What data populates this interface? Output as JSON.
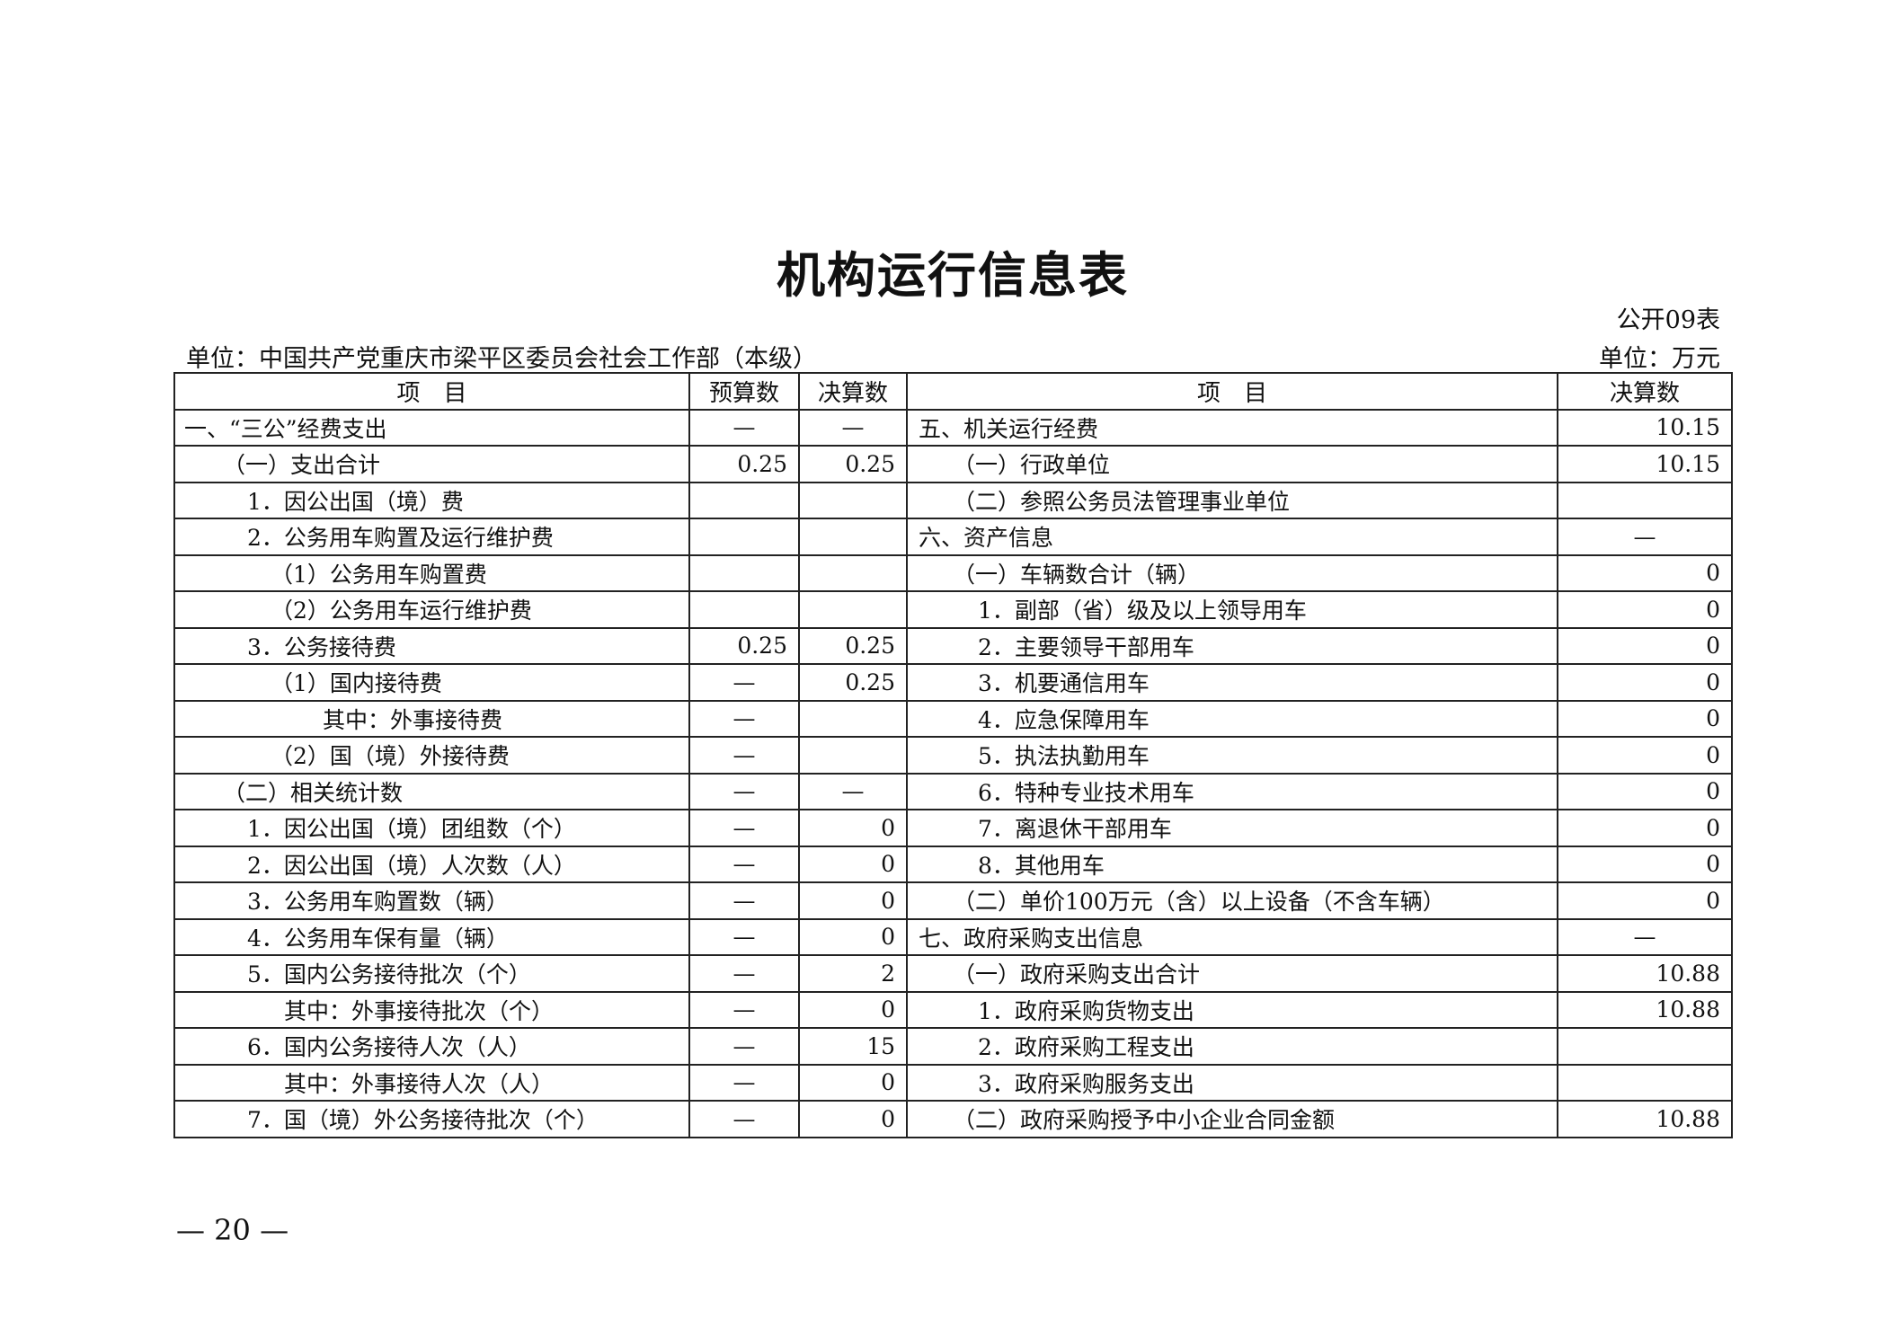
{
  "title": "机构运行信息表",
  "form_no": "公开09表",
  "unit_left": "单位：中国共产党重庆市梁平区委员会社会工作部（本级）",
  "unit_right": "单位：万元",
  "headers": {
    "item_left": "项　目",
    "budget": "预算数",
    "final_left": "决算数",
    "item_right": "项　目",
    "final_right": "决算数"
  },
  "rows": [
    {
      "left": {
        "item": "一、“三公”经费支出",
        "level": 0,
        "budget": "—",
        "final": "—"
      },
      "right": {
        "item": "五、机关运行经费",
        "level": 0,
        "final": "10.15"
      }
    },
    {
      "left": {
        "item": "（一）支出合计",
        "level": 1,
        "budget": "0.25",
        "final": "0.25"
      },
      "right": {
        "item": "（一）行政单位",
        "level": 1,
        "final": "10.15"
      }
    },
    {
      "left": {
        "item": "1．因公出国（境）费",
        "level": 2,
        "budget": "",
        "final": ""
      },
      "right": {
        "item": "（二）参照公务员法管理事业单位",
        "level": 1,
        "final": ""
      }
    },
    {
      "left": {
        "item": "2．公务用车购置及运行维护费",
        "level": 2,
        "budget": "",
        "final": ""
      },
      "right": {
        "item": "六、资产信息",
        "level": 0,
        "final": "—"
      }
    },
    {
      "left": {
        "item": "（1）公务用车购置费",
        "level": 3,
        "budget": "",
        "final": ""
      },
      "right": {
        "item": "（一）车辆数合计（辆）",
        "level": 1,
        "final": "0"
      }
    },
    {
      "left": {
        "item": "（2）公务用车运行维护费",
        "level": 3,
        "budget": "",
        "final": ""
      },
      "right": {
        "item": "1．副部（省）级及以上领导用车",
        "level": 2,
        "final": "0"
      }
    },
    {
      "left": {
        "item": "3．公务接待费",
        "level": 2,
        "budget": "0.25",
        "final": "0.25"
      },
      "right": {
        "item": "2．主要领导干部用车",
        "level": 2,
        "final": "0"
      }
    },
    {
      "left": {
        "item": "（1）国内接待费",
        "level": 3,
        "budget": "—",
        "final": "0.25"
      },
      "right": {
        "item": "3．机要通信用车",
        "level": 2,
        "final": "0"
      }
    },
    {
      "left": {
        "item": "其中：外事接待费",
        "level": 4,
        "budget": "—",
        "final": ""
      },
      "right": {
        "item": "4．应急保障用车",
        "level": 2,
        "final": "0"
      }
    },
    {
      "left": {
        "item": "（2）国（境）外接待费",
        "level": 3,
        "budget": "—",
        "final": ""
      },
      "right": {
        "item": "5．执法执勤用车",
        "level": 2,
        "final": "0"
      }
    },
    {
      "left": {
        "item": "（二）相关统计数",
        "level": 1,
        "budget": "—",
        "final": "—"
      },
      "right": {
        "item": "6．特种专业技术用车",
        "level": 2,
        "final": "0"
      }
    },
    {
      "left": {
        "item": "1．因公出国（境）团组数（个）",
        "level": 2,
        "budget": "—",
        "final": "0"
      },
      "right": {
        "item": "7．离退休干部用车",
        "level": 2,
        "final": "0"
      }
    },
    {
      "left": {
        "item": "2．因公出国（境）人次数（人）",
        "level": 2,
        "budget": "—",
        "final": "0"
      },
      "right": {
        "item": "8．其他用车",
        "level": 2,
        "final": "0"
      }
    },
    {
      "left": {
        "item": "3．公务用车购置数（辆）",
        "level": 2,
        "budget": "—",
        "final": "0"
      },
      "right": {
        "item": "（二）单价100万元（含）以上设备（不含车辆）",
        "level": 1,
        "final": "0"
      }
    },
    {
      "left": {
        "item": "4．公务用车保有量（辆）",
        "level": 2,
        "budget": "—",
        "final": "0"
      },
      "right": {
        "item": "七、政府采购支出信息",
        "level": 0,
        "final": "—"
      }
    },
    {
      "left": {
        "item": "5．国内公务接待批次（个）",
        "level": 2,
        "budget": "—",
        "final": "2"
      },
      "right": {
        "item": "（一）政府采购支出合计",
        "level": 1,
        "final": "10.88"
      }
    },
    {
      "left": {
        "item": "其中：外事接待批次（个）",
        "level": 5,
        "budget": "—",
        "final": "0"
      },
      "right": {
        "item": "1．政府采购货物支出",
        "level": 2,
        "final": "10.88"
      }
    },
    {
      "left": {
        "item": "6．国内公务接待人次（人）",
        "level": 2,
        "budget": "—",
        "final": "15"
      },
      "right": {
        "item": "2．政府采购工程支出",
        "level": 2,
        "final": ""
      }
    },
    {
      "left": {
        "item": "其中：外事接待人次（人）",
        "level": 5,
        "budget": "—",
        "final": "0"
      },
      "right": {
        "item": "3．政府采购服务支出",
        "level": 2,
        "final": ""
      }
    },
    {
      "left": {
        "item": "7．国（境）外公务接待批次（个）",
        "level": 2,
        "budget": "—",
        "final": "0"
      },
      "right": {
        "item": "（二）政府采购授予中小企业合同金额",
        "level": 1,
        "final": "10.88"
      }
    }
  ],
  "page_number": "— 20 —"
}
